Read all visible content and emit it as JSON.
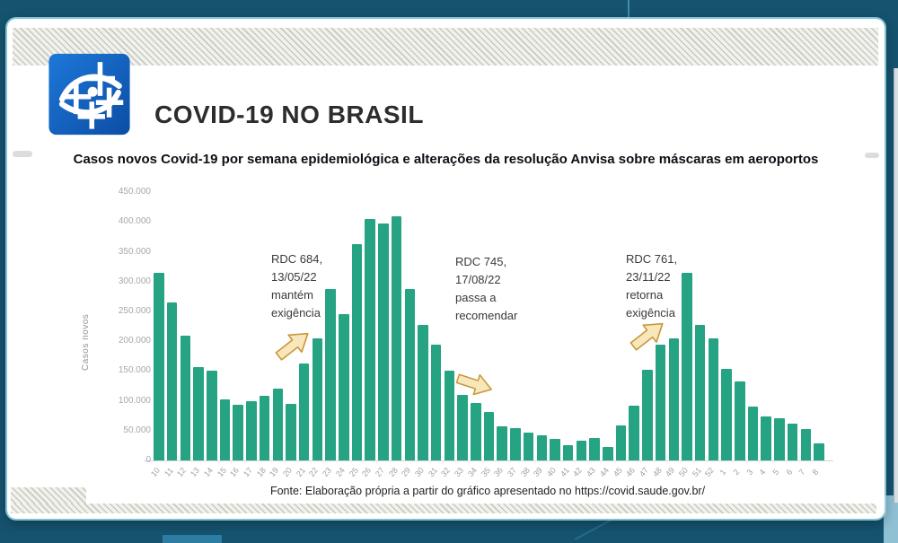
{
  "header": {
    "title": "COVID-19 NO BRASIL",
    "logo": "tv-network-logo"
  },
  "chart_data": {
    "type": "bar",
    "title": "Casos novos Covid-19 por semana epidemiológica e alterações da resolução Anvisa sobre máscaras em aeroportos",
    "xlabel": "",
    "ylabel": "Casos novos",
    "ylim": [
      0,
      450000
    ],
    "grid": false,
    "legend_position": "none",
    "bar_color": "#26a383",
    "ytick_labels": [
      "0",
      "50.000",
      "100.000",
      "150.000",
      "200.000",
      "250.000",
      "300.000",
      "350.000",
      "400.000",
      "450.000"
    ],
    "categories": [
      "10",
      "11",
      "12",
      "13",
      "14",
      "15",
      "16",
      "17",
      "18",
      "19",
      "20",
      "21",
      "22",
      "23",
      "24",
      "25",
      "26",
      "27",
      "28",
      "29",
      "30",
      "31",
      "32",
      "33",
      "34",
      "35",
      "36",
      "37",
      "38",
      "39",
      "40",
      "41",
      "42",
      "43",
      "44",
      "45",
      "46",
      "47",
      "48",
      "49",
      "50",
      "51",
      "52",
      "1",
      "2",
      "3",
      "4",
      "5",
      "6",
      "7",
      "8"
    ],
    "values": [
      315000,
      265000,
      210000,
      157000,
      150000,
      102000,
      93000,
      100000,
      108000,
      120000,
      95000,
      163000,
      205000,
      288000,
      245000,
      363000,
      405000,
      397000,
      410000,
      287000,
      228000,
      195000,
      150000,
      110000,
      96000,
      82000,
      57000,
      54000,
      47000,
      42000,
      36000,
      25000,
      33000,
      37000,
      23000,
      59000,
      92000,
      152000,
      195000,
      205000,
      315000,
      228000,
      205000,
      154000,
      133000,
      90000,
      74000,
      71000,
      62000,
      53000,
      29000
    ],
    "annotations": [
      {
        "text": "RDC 684,\n13/05/22\nmantém\nexigência",
        "arrow_direction": "up-right",
        "near_week": "21"
      },
      {
        "text": "RDC 745,\n17/08/22\npassa a\nrecomendar",
        "arrow_direction": "down-right",
        "near_week": "34"
      },
      {
        "text": "RDC 761,\n23/11/22\nretorna\nexigência",
        "arrow_direction": "up-right",
        "near_week": "47"
      }
    ]
  },
  "footer": {
    "source": "Fonte:  Elaboração própria a partir do gráfico apresentado no https://covid.saude.gov.br/"
  }
}
